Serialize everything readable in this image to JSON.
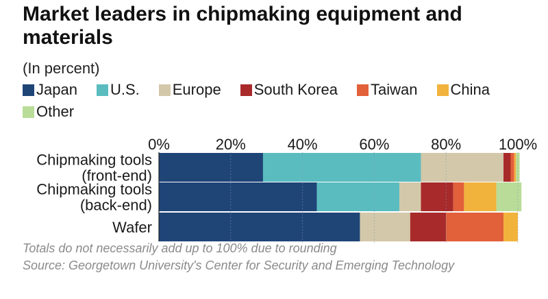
{
  "title": "Market leaders in chipmaking equipment and materials",
  "subtitle": "(In percent)",
  "footnote": "Totals do not necessarily add up to 100% due to rounding",
  "source": "Source: Georgetown University's Center for Security and Emerging Technology",
  "colors": {
    "Japan": "#1f4577",
    "U.S.": "#5bbcc0",
    "Europe": "#d3c8a9",
    "South Korea": "#a82a2a",
    "Taiwan": "#e2603a",
    "China": "#f2b33d",
    "Other": "#b9dc98"
  },
  "chart_data": {
    "type": "bar",
    "orientation": "horizontal",
    "stacked": true,
    "categories": [
      [
        "Chipmaking tools",
        "(front-end)"
      ],
      [
        "Chipmaking tools",
        "(back-end)"
      ],
      [
        "Wafer"
      ]
    ],
    "series": [
      {
        "name": "Japan",
        "values": [
          29,
          44,
          56
        ]
      },
      {
        "name": "U.S.",
        "values": [
          44,
          23,
          0
        ]
      },
      {
        "name": "Europe",
        "values": [
          23,
          6,
          14
        ]
      },
      {
        "name": "South Korea",
        "values": [
          2,
          9,
          10
        ]
      },
      {
        "name": "Taiwan",
        "values": [
          1,
          3,
          16
        ]
      },
      {
        "name": "China",
        "values": [
          0.5,
          9,
          4
        ]
      },
      {
        "name": "Other",
        "values": [
          1,
          7,
          0
        ]
      }
    ],
    "xlim": [
      0,
      100
    ],
    "xticks": [
      0,
      20,
      40,
      60,
      80,
      100
    ],
    "xtick_labels": [
      "0%",
      "20%",
      "40%",
      "60%",
      "80%",
      "100%"
    ],
    "grid": "vertical dotted",
    "legend_placement": "top"
  }
}
